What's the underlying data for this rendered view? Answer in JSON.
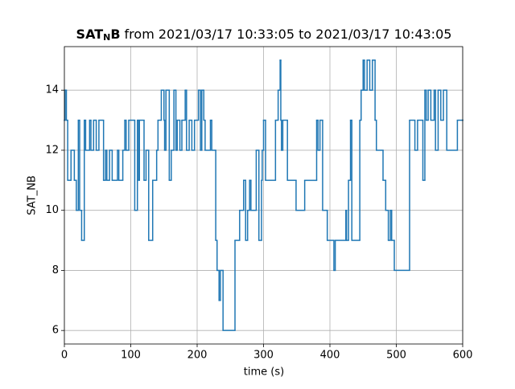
{
  "chart_data": {
    "type": "step",
    "title": {
      "bold": "SAT",
      "subscript": "N",
      "bold_end": "B",
      "text": "from 2021/03/17 10:33:05 to 2021/03/17 10:43:05"
    },
    "xlabel": "time (s)",
    "ylabel": "SAT_NB",
    "x": [
      0,
      1,
      3,
      5,
      10,
      15,
      18,
      21,
      23,
      26,
      30,
      32,
      38,
      40,
      44,
      48,
      52,
      59,
      62,
      64,
      68,
      72,
      80,
      82,
      88,
      91,
      93,
      97,
      106,
      110,
      112,
      113,
      120,
      123,
      127,
      133,
      139,
      141,
      146,
      150,
      151,
      153,
      158,
      161,
      165,
      168,
      170,
      174,
      177,
      182,
      184,
      188,
      192,
      196,
      202,
      205,
      207,
      210,
      212,
      220,
      222,
      228,
      230,
      233,
      235,
      239,
      257,
      264,
      270,
      273,
      276,
      279,
      281,
      289,
      293,
      297,
      298,
      300,
      303,
      318,
      322,
      325,
      326,
      327,
      329,
      336,
      349,
      362,
      380,
      382,
      385,
      389,
      396,
      406,
      408,
      424,
      425,
      428,
      431,
      433,
      445,
      447,
      450,
      452,
      456,
      460,
      464,
      468,
      470,
      480,
      484,
      488,
      491,
      493,
      497,
      520,
      528,
      532,
      540,
      543,
      545,
      548,
      552,
      557,
      559,
      563,
      567,
      571,
      576,
      592,
      600
    ],
    "series": [
      {
        "name": "SAT_NB",
        "color": "#1f77b4",
        "values": [
          13,
          14,
          13,
          11,
          12,
          11,
          10,
          13,
          10,
          9,
          13,
          12,
          13,
          12,
          13,
          12,
          13,
          11,
          12,
          11,
          12,
          11,
          12,
          11,
          12,
          13,
          12,
          13,
          10,
          13,
          11,
          13,
          11,
          12,
          9,
          11,
          12,
          13,
          14,
          13,
          12,
          14,
          11,
          12,
          14,
          12,
          13,
          12,
          13,
          14,
          12,
          13,
          12,
          13,
          14,
          12,
          14,
          13,
          12,
          13,
          12,
          9,
          8,
          7,
          8,
          6,
          9,
          10,
          11,
          9,
          10,
          11,
          10,
          12,
          9,
          11,
          12,
          13,
          11,
          13,
          14,
          15,
          13,
          12,
          13,
          11,
          10,
          11,
          13,
          12,
          13,
          10,
          9,
          8,
          9,
          10,
          9,
          11,
          13,
          9,
          13,
          14,
          15,
          14,
          15,
          14,
          15,
          13,
          12,
          11,
          10,
          9,
          10,
          9,
          8,
          13,
          12,
          13,
          11,
          14,
          13,
          14,
          13,
          14,
          12,
          14,
          13,
          14,
          12,
          13,
          13
        ]
      }
    ],
    "xlim": [
      0,
      600
    ],
    "xticks": [
      0,
      100,
      200,
      300,
      400,
      500,
      600
    ],
    "ylim": [
      5.55,
      15.45
    ],
    "yticks": [
      6,
      8,
      10,
      12,
      14
    ],
    "grid": true
  }
}
